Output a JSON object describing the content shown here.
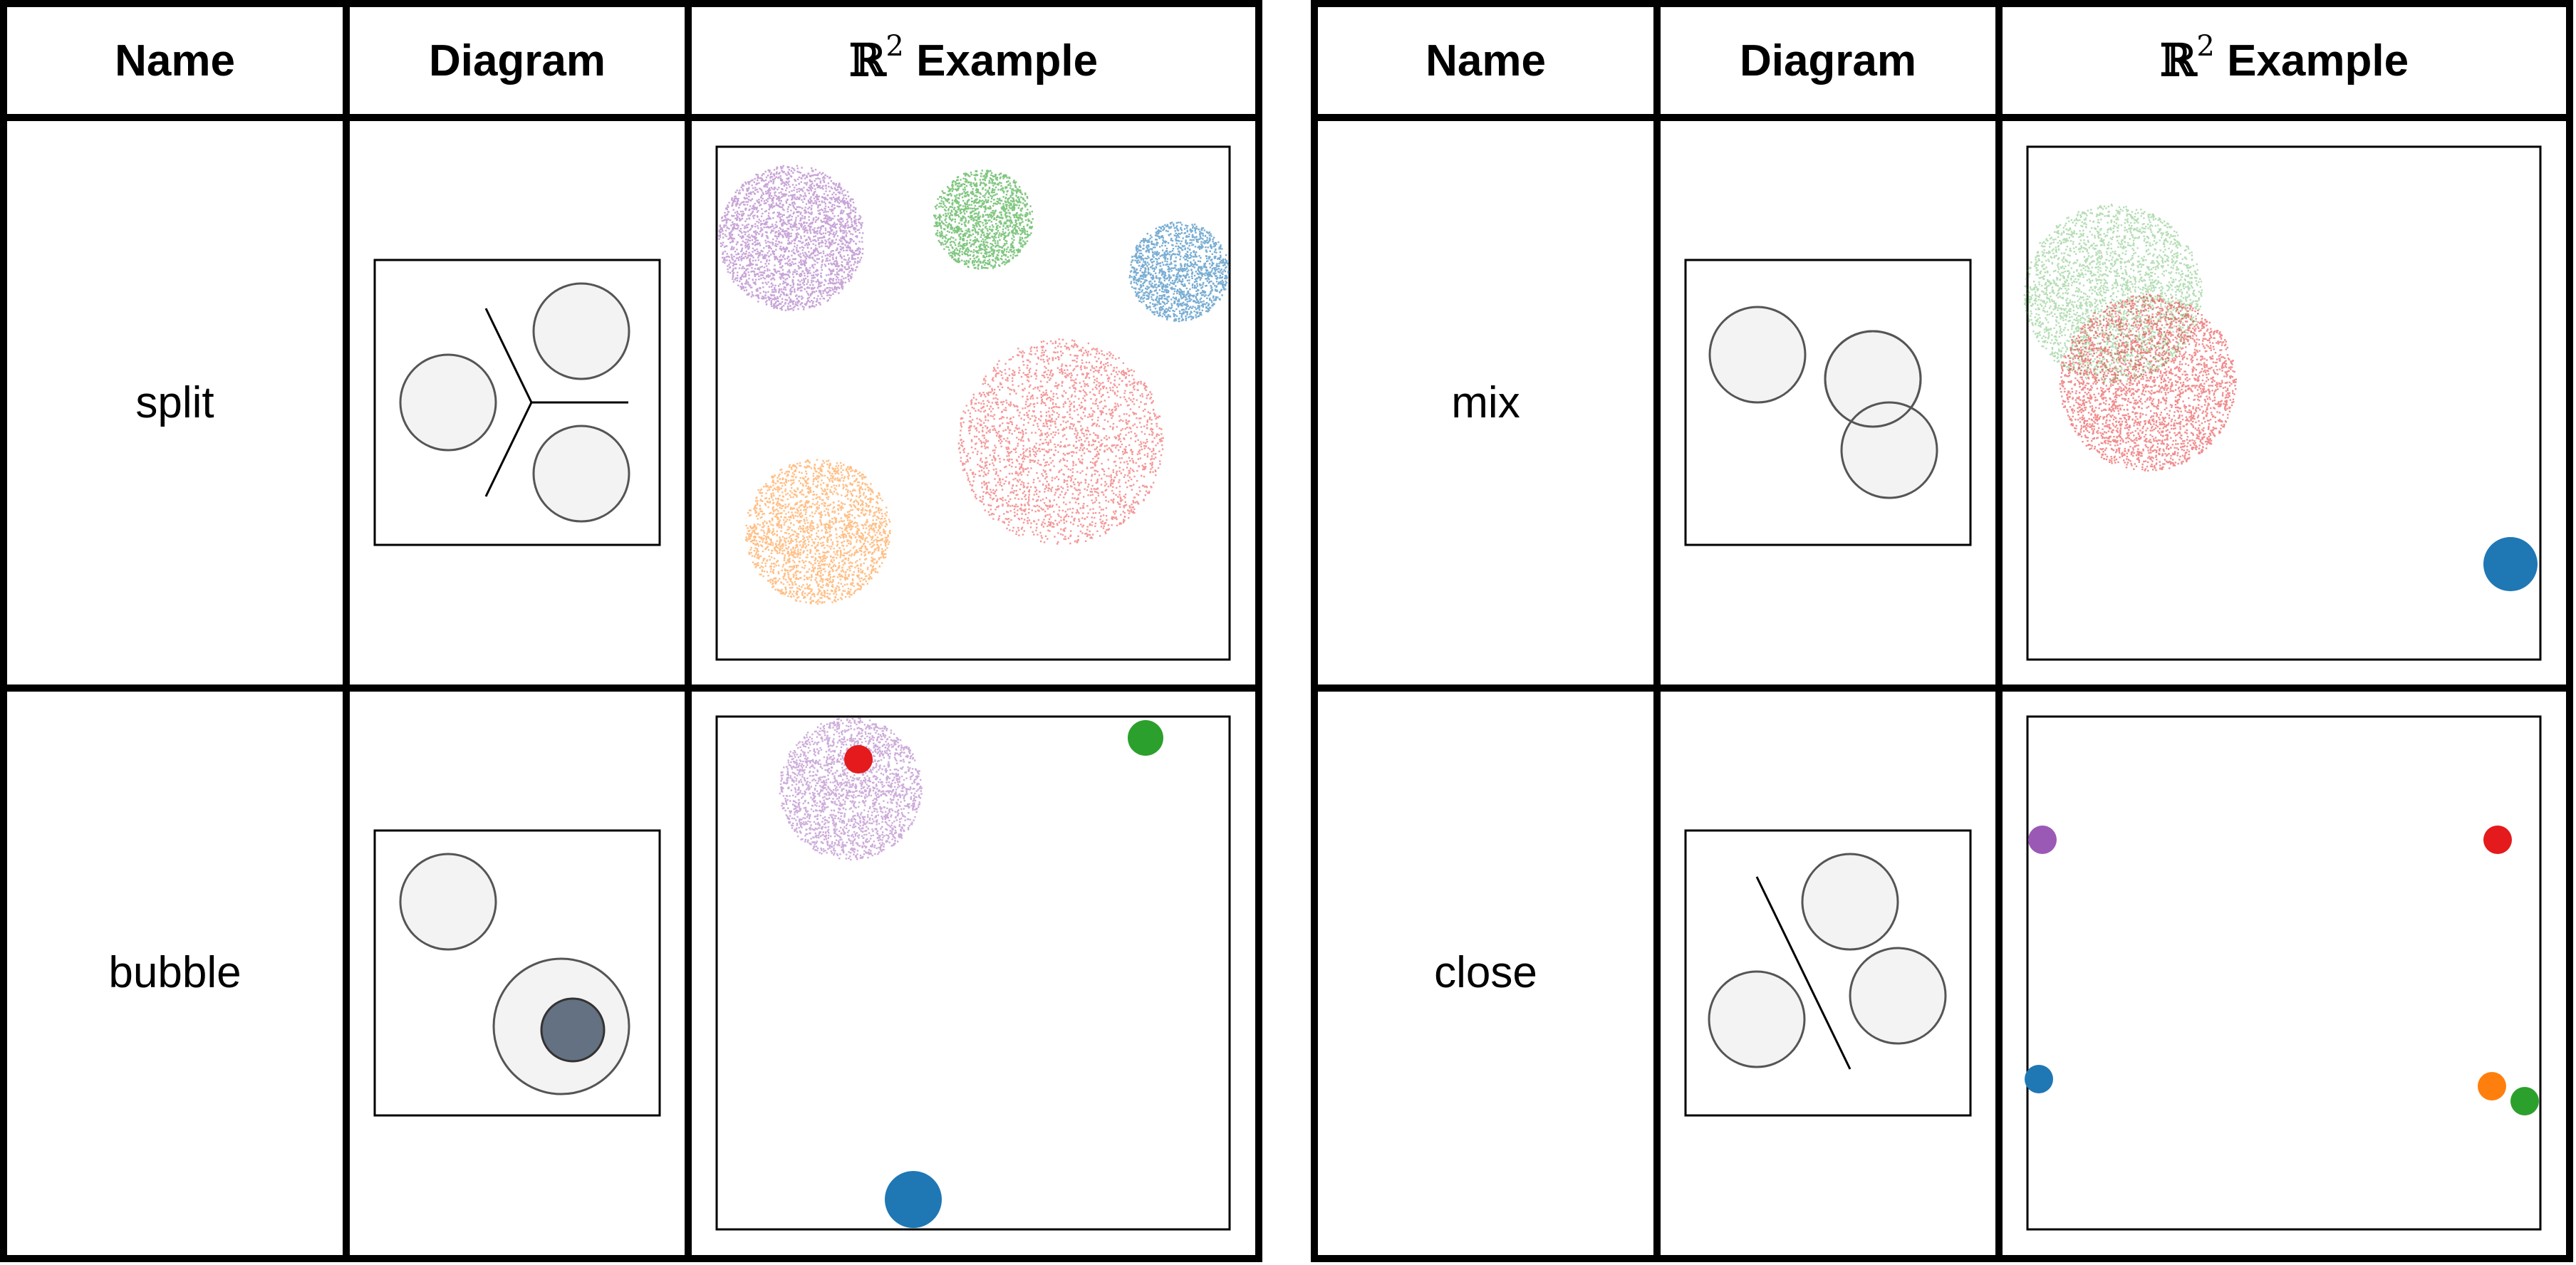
{
  "tables": [
    {
      "headers": {
        "name": "Name",
        "diagram": "Diagram",
        "example_symbol": "ℝ",
        "example_exponent": "2",
        "example_word": "Example"
      },
      "rows": [
        {
          "name": "split",
          "diagram": "split-diagram",
          "example": "split-example"
        },
        {
          "name": "bubble",
          "diagram": "bubble-diagram",
          "example": "bubble-example"
        }
      ]
    },
    {
      "headers": {
        "name": "Name",
        "diagram": "Diagram",
        "example_symbol": "ℝ",
        "example_exponent": "2",
        "example_word": "Example"
      },
      "rows": [
        {
          "name": "mix",
          "diagram": "mix-diagram",
          "example": "mix-example"
        },
        {
          "name": "close",
          "diagram": "close-diagram",
          "example": "close-example"
        }
      ]
    }
  ],
  "colors": {
    "purple": "#9b59b6",
    "green": "#2ca02c",
    "blue": "#1f77b4",
    "red": "#e41a1c",
    "orange": "#ff7f0e",
    "circle_fill": "#f3f3f3",
    "circle_stroke": "#555555",
    "inner_dark": "#647182"
  }
}
